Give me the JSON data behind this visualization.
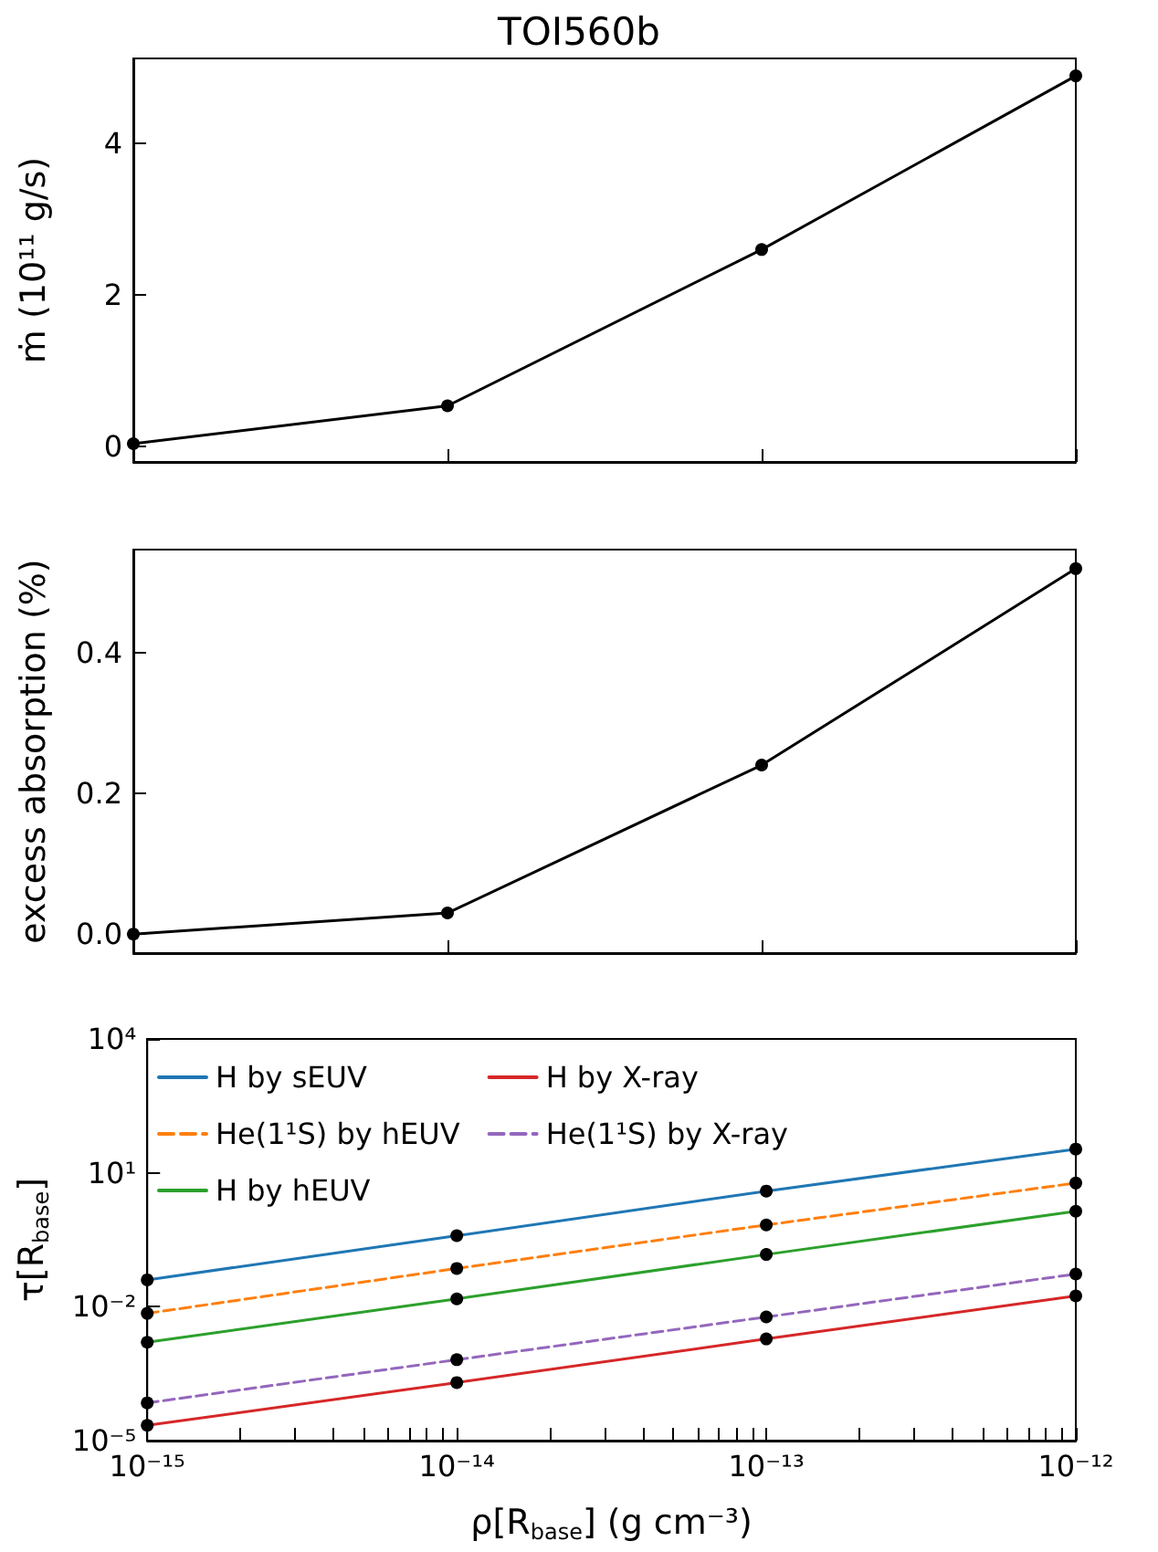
{
  "chart_data": [
    {
      "type": "line",
      "title": "TOI560b",
      "ylabel": "ṁ (10¹¹ g/s)",
      "categories": [
        null,
        null,
        null,
        null
      ],
      "ylim": [
        -0.2,
        5.12
      ],
      "yticks": [
        0,
        2,
        4
      ],
      "tick_labels": "y",
      "marker": "circle",
      "line_style": "solid",
      "legend": false,
      "series": [
        {
          "color": "#000000",
          "values": [
            0.04,
            0.54,
            2.6,
            4.89
          ]
        }
      ]
    },
    {
      "type": "line",
      "ylabel": "excess absorption (%)",
      "categories": [
        null,
        null,
        null,
        null
      ],
      "ylim": [
        -0.027,
        0.546
      ],
      "yticks": [
        {
          "value": 0,
          "label": "0.0"
        },
        {
          "value": 0.2,
          "label": "0.2"
        },
        {
          "value": 0.4,
          "label": "0.4"
        }
      ],
      "tick_labels": "y",
      "marker": "circle",
      "line_style": "solid",
      "legend": false,
      "series": [
        {
          "color": "#000000",
          "values": [
            0.0,
            0.03,
            0.24,
            0.519
          ]
        }
      ]
    },
    {
      "type": "line",
      "xlabel": "ρ[R$_{base}$] (g cm⁻³)",
      "ylabel": "τ[R$_{base}$]",
      "x": [
        1e-15,
        1e-14,
        1e-13,
        1e-12
      ],
      "log": "xy",
      "xlim": [
        1e-15,
        1e-12
      ],
      "xticks": [
        {
          "value": 1e-15,
          "label": "10⁻¹⁵"
        },
        {
          "value": 2e-15,
          "label": null
        },
        {
          "value": 3e-15,
          "label": null
        },
        {
          "value": 4e-15,
          "label": null
        },
        {
          "value": 5e-15,
          "label": null
        },
        {
          "value": 6e-15,
          "label": null
        },
        {
          "value": 7e-15,
          "label": null
        },
        {
          "value": 8e-15,
          "label": null
        },
        {
          "value": 9e-15,
          "label": null
        },
        {
          "value": 1e-14,
          "label": "10⁻¹⁴"
        },
        {
          "value": 2e-14,
          "label": null
        },
        {
          "value": 3e-14,
          "label": null
        },
        {
          "value": 4e-14,
          "label": null
        },
        {
          "value": 5e-14,
          "label": null
        },
        {
          "value": 6e-14,
          "label": null
        },
        {
          "value": 7e-14,
          "label": null
        },
        {
          "value": 8e-14,
          "label": null
        },
        {
          "value": 9e-14,
          "label": null
        },
        {
          "value": 1e-13,
          "label": "10⁻¹³"
        },
        {
          "value": 2e-13,
          "label": null
        },
        {
          "value": 3e-13,
          "label": null
        },
        {
          "value": 4e-13,
          "label": null
        },
        {
          "value": 5e-13,
          "label": null
        },
        {
          "value": 6e-13,
          "label": null
        },
        {
          "value": 7e-13,
          "label": null
        },
        {
          "value": 8e-13,
          "label": null
        },
        {
          "value": 9e-13,
          "label": null
        },
        {
          "value": 1e-12,
          "label": "10⁻¹²"
        }
      ],
      "ylim": [
        1e-05,
        10000.0
      ],
      "yticks": [
        {
          "value": 1e-05,
          "label": "10⁻⁵"
        },
        {
          "value": 0.01,
          "label": "10⁻²"
        },
        {
          "value": 10,
          "label": "10¹"
        },
        {
          "value": 10000.0,
          "label": "10⁴"
        }
      ],
      "marker": "circle",
      "legend": "top left",
      "series": [
        {
          "name": "H by sEUV",
          "color": "#1f77b4",
          "line_style": "solid",
          "values": [
            0.04,
            0.39,
            3.9,
            34
          ]
        },
        {
          "name": "He(1¹S) by hEUV",
          "color": "#ff7f0e",
          "line_style": "dashed",
          "values": [
            0.0071,
            0.072,
            0.68,
            5.9
          ]
        },
        {
          "name": "H by hEUV",
          "color": "#2ca02c",
          "line_style": "solid",
          "values": [
            0.0016,
            0.015,
            0.148,
            1.38
          ]
        },
        {
          "name": "H by X-ray",
          "color": "#d62728",
          "line_style": "solid",
          "values": [
            2.2e-05,
            0.0002,
            0.0019,
            0.0175
          ]
        },
        {
          "name": "He(1¹S) by X-ray",
          "color": "#9467bd",
          "line_style": "dashed",
          "values": [
            7e-05,
            0.00065,
            0.0059,
            0.054
          ]
        }
      ]
    }
  ]
}
